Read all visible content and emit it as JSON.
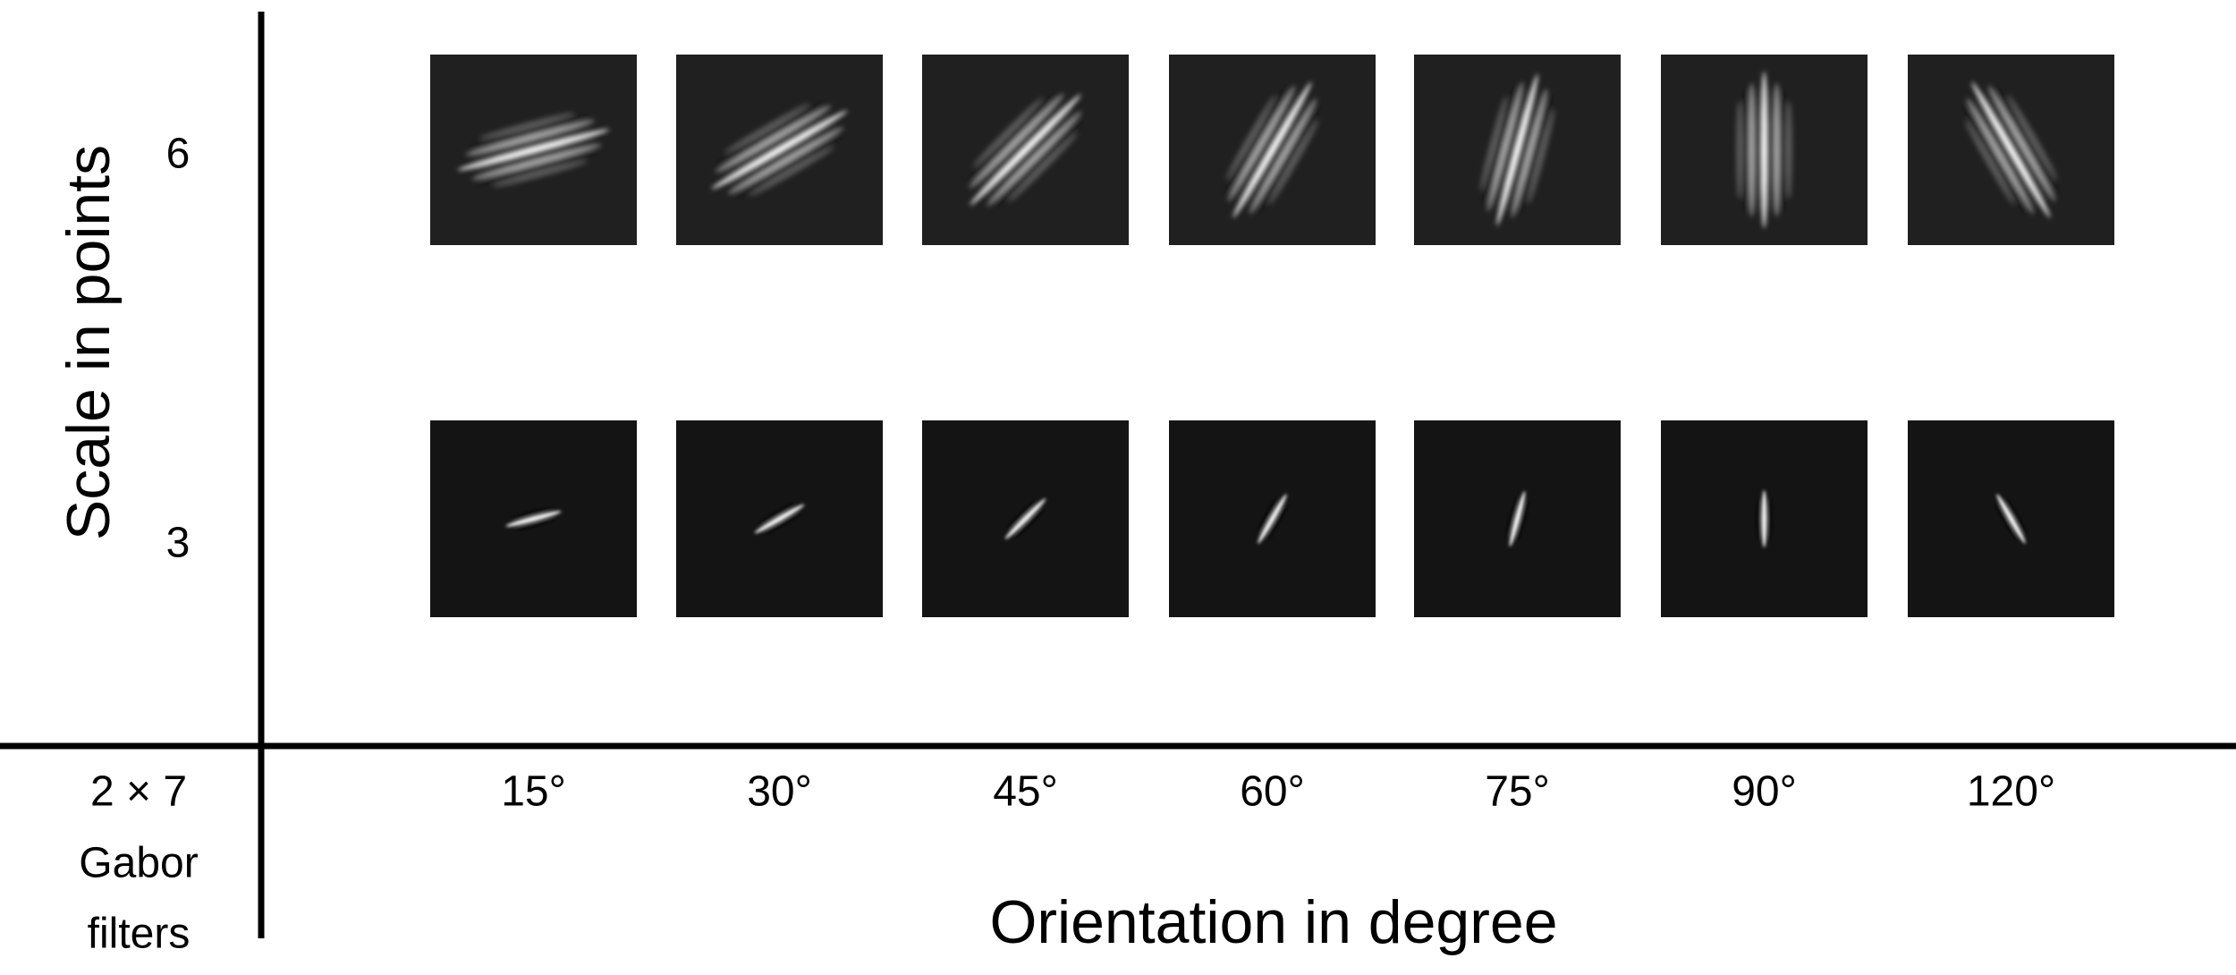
{
  "y_axis_title": "Scale in points",
  "x_axis_title": "Orientation in degree",
  "corner_label": [
    "2 × 7",
    "Gabor",
    "filters"
  ],
  "scales": [
    "6",
    "3"
  ],
  "orientations": [
    "15°",
    "30°",
    "45°",
    "60°",
    "75°",
    "90°",
    "120°"
  ]
}
